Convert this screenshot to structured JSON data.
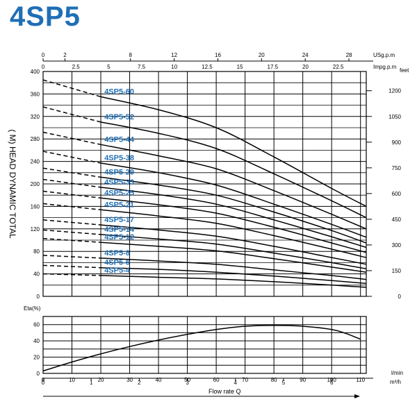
{
  "page_title": "4SP5",
  "colors": {
    "title": "#1f6fb6",
    "curve_label": "#1f6fb6",
    "grid": "#000000",
    "curve": "#000000"
  },
  "chart_data": [
    {
      "type": "line",
      "title": "4SP5",
      "ylabel": "( M) HEAD DYNAMIC TOTAL",
      "xlabel": "",
      "ylim": [
        0,
        400
      ],
      "xlim": [
        0,
        112
      ],
      "x_unit": "l/min",
      "grid": true,
      "left_ticks": [
        "0",
        "40",
        "80",
        "120",
        "160",
        "200",
        "240",
        "280",
        "320",
        "360",
        "400"
      ],
      "right_axis": {
        "unit": "feet",
        "ticks": [
          "0",
          "150",
          "300",
          "450",
          "600",
          "750",
          "900",
          "1050",
          "1200"
        ]
      },
      "top_axis_usg": {
        "unit": "USg.p.m",
        "ticks": [
          "0",
          "2",
          "8",
          "12",
          "16",
          "20",
          "24",
          "28"
        ]
      },
      "top_axis_imp": {
        "unit": "Impg.p.m",
        "ticks": [
          "0",
          "2.5",
          "5",
          "7.5",
          "10",
          "12.5",
          "15",
          "17.5",
          "20",
          "22.5"
        ]
      },
      "series": [
        {
          "name": "4SP5-60",
          "dashed": [
            [
              0,
              385
            ],
            [
              20,
              355
            ]
          ],
          "solid": [
            [
              20,
              355
            ],
            [
              40,
              332
            ],
            [
              60,
              300
            ],
            [
              80,
              248
            ],
            [
              100,
              192
            ],
            [
              112,
              160
            ]
          ]
        },
        {
          "name": "4SP5-52",
          "dashed": [
            [
              0,
              337
            ],
            [
              20,
              310
            ]
          ],
          "solid": [
            [
              20,
              310
            ],
            [
              40,
              290
            ],
            [
              60,
              263
            ],
            [
              80,
              218
            ],
            [
              100,
              170
            ],
            [
              112,
              140
            ]
          ]
        },
        {
          "name": "4SP5-44",
          "dashed": [
            [
              0,
              292
            ],
            [
              20,
              270
            ]
          ],
          "solid": [
            [
              20,
              270
            ],
            [
              40,
              250
            ],
            [
              60,
              227
            ],
            [
              80,
              188
            ],
            [
              100,
              146
            ],
            [
              112,
              120
            ]
          ]
        },
        {
          "name": "4SP5-38",
          "dashed": [
            [
              0,
              258
            ],
            [
              20,
              237
            ]
          ],
          "solid": [
            [
              20,
              237
            ],
            [
              40,
              220
            ],
            [
              60,
              198
            ],
            [
              80,
              164
            ],
            [
              100,
              128
            ],
            [
              112,
              105
            ]
          ]
        },
        {
          "name": "4SP5-29",
          "dashed": [
            [
              0,
              228
            ],
            [
              20,
              212
            ]
          ],
          "solid": [
            [
              20,
              212
            ],
            [
              40,
              198
            ],
            [
              60,
              180
            ],
            [
              80,
              150
            ],
            [
              100,
              117
            ],
            [
              112,
              95
            ]
          ]
        },
        {
          "name": "4SP5-33",
          "dashed": [
            [
              0,
              208
            ],
            [
              20,
              194
            ]
          ],
          "solid": [
            [
              20,
              194
            ],
            [
              40,
              181
            ],
            [
              60,
              164
            ],
            [
              80,
              136
            ],
            [
              100,
              106
            ],
            [
              112,
              87
            ]
          ]
        },
        {
          "name": "4SP5-25",
          "dashed": [
            [
              0,
              187
            ],
            [
              20,
              175
            ]
          ],
          "solid": [
            [
              20,
              175
            ],
            [
              40,
              163
            ],
            [
              60,
              148
            ],
            [
              80,
              123
            ],
            [
              100,
              95
            ],
            [
              112,
              78
            ]
          ]
        },
        {
          "name": "4SP5-21",
          "dashed": [
            [
              0,
              165
            ],
            [
              20,
              154
            ]
          ],
          "solid": [
            [
              20,
              154
            ],
            [
              40,
              143
            ],
            [
              60,
              130
            ],
            [
              80,
              108
            ],
            [
              100,
              84
            ],
            [
              112,
              69
            ]
          ]
        },
        {
          "name": "4SP5-17",
          "dashed": [
            [
              0,
              136
            ],
            [
              20,
              127
            ]
          ],
          "solid": [
            [
              20,
              127
            ],
            [
              40,
              118
            ],
            [
              60,
              107
            ],
            [
              80,
              89
            ],
            [
              100,
              69
            ],
            [
              112,
              57
            ]
          ]
        },
        {
          "name": "4SP5-14",
          "dashed": [
            [
              0,
              118
            ],
            [
              20,
              110
            ]
          ],
          "solid": [
            [
              20,
              110
            ],
            [
              40,
              102
            ],
            [
              60,
              93
            ],
            [
              80,
              77
            ],
            [
              100,
              60
            ],
            [
              112,
              49
            ]
          ]
        },
        {
          "name": "4SP5-12",
          "dashed": [
            [
              0,
              103
            ],
            [
              20,
              96
            ]
          ],
          "solid": [
            [
              20,
              96
            ],
            [
              40,
              89
            ],
            [
              60,
              81
            ],
            [
              80,
              67
            ],
            [
              100,
              52
            ],
            [
              112,
              43
            ]
          ]
        },
        {
          "name": "4SP5-8",
          "dashed": [
            [
              0,
              73
            ],
            [
              20,
              68
            ]
          ],
          "solid": [
            [
              20,
              68
            ],
            [
              40,
              63
            ],
            [
              60,
              57
            ],
            [
              80,
              47
            ],
            [
              100,
              37
            ],
            [
              112,
              30
            ]
          ]
        },
        {
          "name": "4SP5-6",
          "dashed": [
            [
              0,
              55
            ],
            [
              20,
              51
            ]
          ],
          "solid": [
            [
              20,
              51
            ],
            [
              40,
              48
            ],
            [
              60,
              43
            ],
            [
              80,
              36
            ],
            [
              100,
              28
            ],
            [
              112,
              23
            ]
          ]
        },
        {
          "name": "4SP5-4",
          "dashed": [
            [
              0,
              40
            ],
            [
              20,
              37
            ]
          ],
          "solid": [
            [
              20,
              37
            ],
            [
              40,
              34
            ],
            [
              60,
              31
            ],
            [
              80,
              26
            ],
            [
              100,
              20
            ],
            [
              112,
              16
            ]
          ]
        }
      ]
    },
    {
      "type": "line",
      "title": "",
      "ylabel": "Eta(%)",
      "xlabel": "Flow rate Q",
      "ylim": [
        0,
        70
      ],
      "xlim": [
        0,
        112
      ],
      "grid": true,
      "y_ticks": [
        "0",
        "20",
        "40",
        "60"
      ],
      "bottom_axis_lmin": {
        "unit": "l/min",
        "ticks": [
          "0",
          "10",
          "20",
          "30",
          "40",
          "50",
          "60",
          "70",
          "80",
          "90",
          "100",
          "110"
        ]
      },
      "bottom_axis_m3h": {
        "unit": "m³/h",
        "ticks": [
          "0",
          "1",
          "2",
          "3",
          "4",
          "5",
          "6"
        ]
      },
      "series": [
        {
          "name": "",
          "x": [
            0,
            10,
            20,
            30,
            40,
            50,
            60,
            70,
            80,
            90,
            100,
            105,
            110
          ],
          "y": [
            3,
            14,
            24,
            33,
            41,
            48,
            54,
            58,
            59,
            58,
            54,
            49,
            42
          ]
        }
      ]
    }
  ]
}
